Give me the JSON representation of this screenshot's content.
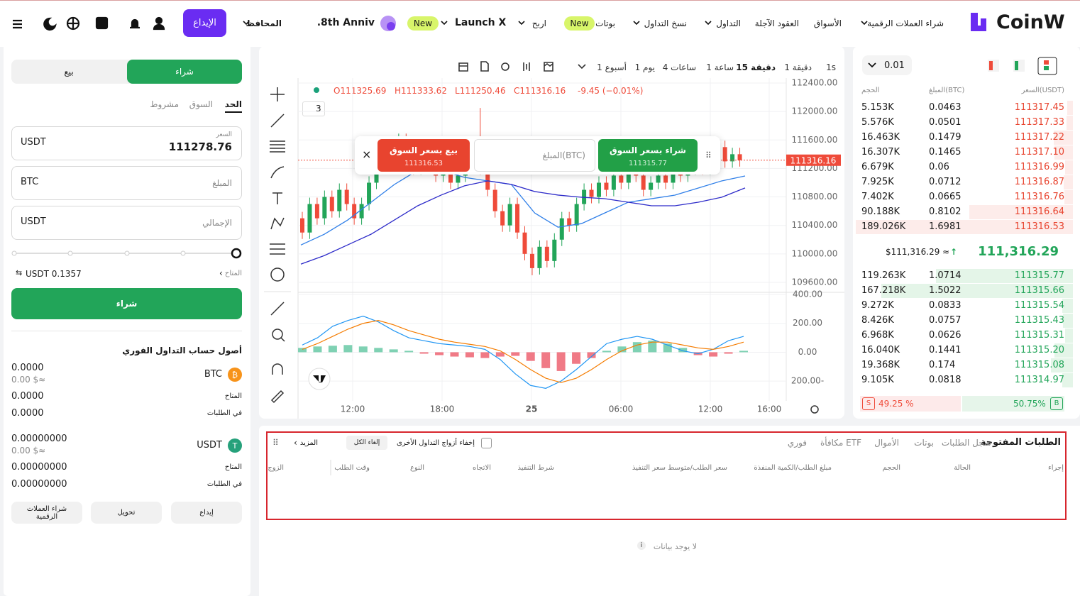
{
  "nav": {
    "logo": "CoinW",
    "buy_crypto": "شراء العملات الرقمية",
    "markets": "الأسواق",
    "futures": "العقود الآجلة",
    "trade": "التداول",
    "copy_trading": "نسخ التداول",
    "bots": "بوتات",
    "bots_badge": "New",
    "earn": "اربح",
    "launch_x": "Launch X",
    "launch_badge": "New",
    "anniversary": "8th Anniv.",
    "wallets": "المحافظ",
    "deposit": "الإيداع"
  },
  "trade_form": {
    "tabs": {
      "buy": "شراء",
      "sell": "بيع"
    },
    "order_types": {
      "limit": "الحد",
      "market": "السوق",
      "conditional": "مشروط"
    },
    "price": {
      "label": "السعر",
      "value": "111278.76",
      "unit": "USDT"
    },
    "amount": {
      "label": "المبلغ",
      "unit": "BTC"
    },
    "total": {
      "label": "الإجمالي",
      "unit": "USDT"
    },
    "available": {
      "label": "المتاح",
      "value": "USDT 0.1357"
    },
    "submit": "شراء"
  },
  "assets": {
    "title": "أصول حساب التداول الفوري",
    "coins": [
      {
        "name": "BTC",
        "balance": "0.0000",
        "usd": "0.00 $≈",
        "available_label": "المتاح",
        "available": "0.0000",
        "in_orders_label": "في الطلبات",
        "in_orders": "0.0000"
      },
      {
        "name": "USDT",
        "balance": "0.00000000",
        "usd": "0.00 $≈",
        "available_label": "المتاح",
        "available": "0.00000000",
        "in_orders_label": "في الطلبات",
        "in_orders": "0.00000000"
      }
    ],
    "buttons": {
      "deposit": "إيداع",
      "transfer": "تحويل",
      "buy": "شراء العملات الرقمية"
    }
  },
  "price_chart": {
    "intervals": [
      "1s",
      "1 دقيقة",
      "15 دقيقة",
      "1 ساعة",
      "4 ساعات",
      "1 يوم",
      "1 أسبوع"
    ],
    "ohlc": {
      "open": "O111325.69",
      "high": "H111333.62",
      "low": "L111250.46",
      "close": "C111316.16",
      "change": "-9.45 (−0.01%)"
    },
    "indicator_count": 3,
    "quick_trade": {
      "buy_label": "شراء بسعر السوق",
      "buy_price": "111315.77",
      "sell_label": "بيع بسعر السوق",
      "sell_price": "111316.53",
      "amount_placeholder": "المبلغ(BTC)"
    },
    "ylim": [
      109480,
      112470
    ],
    "yticks": [
      {
        "value": 112400,
        "label": "112400.00"
      },
      {
        "value": 112000,
        "label": "112000.00"
      },
      {
        "value": 111600,
        "label": "111600.00"
      },
      {
        "value": 111200,
        "label": "111200.00"
      },
      {
        "value": 110800,
        "label": "110800.00"
      },
      {
        "value": 110400,
        "label": "110400.00"
      },
      {
        "value": 110000,
        "label": "110000.00"
      },
      {
        "value": 109600,
        "label": "109600.00"
      }
    ],
    "last_price": 111316.16,
    "x_labels": [
      "12:00",
      "18:00",
      "25",
      "06:00",
      "12:00",
      "16:00"
    ],
    "up_color": "#22a559",
    "down_color": "#ef4b3a",
    "candles": {
      "open": [
        110500,
        110300,
        110700,
        110500,
        110800,
        110600,
        110900,
        110700,
        110500,
        110700,
        111000,
        111300,
        111500,
        111400,
        111600,
        111300,
        111200,
        111400,
        111300,
        111100,
        111200,
        111000,
        111100,
        111300,
        111500,
        111200,
        110900,
        110600,
        110400,
        110700,
        110300,
        110000,
        109800,
        110100,
        109900,
        110200,
        110500,
        110400,
        110700,
        110900,
        110800,
        111000,
        110900,
        111100,
        111000,
        111200,
        111100,
        110900,
        111000,
        111100,
        111000,
        111200,
        111100,
        111200,
        111300,
        111200,
        111400,
        111500,
        111300,
        111400
      ],
      "high": [
        110590,
        110790,
        110790,
        110890,
        110890,
        110990,
        110990,
        110790,
        110790,
        111090,
        111390,
        111590,
        111590,
        111690,
        111690,
        111390,
        111490,
        111490,
        111390,
        111290,
        111290,
        111190,
        111390,
        111590,
        112050,
        111290,
        110990,
        110690,
        110790,
        110790,
        110390,
        110090,
        110190,
        110190,
        110290,
        110590,
        110590,
        110790,
        110990,
        110990,
        111090,
        111090,
        111190,
        111190,
        111290,
        111290,
        111190,
        111090,
        111190,
        111190,
        111290,
        111290,
        111290,
        111390,
        111390,
        111490,
        111590,
        111590,
        111490,
        111490
      ],
      "low": [
        110210,
        110210,
        110410,
        110410,
        110510,
        110510,
        110610,
        110410,
        110410,
        110610,
        110910,
        111210,
        111310,
        111310,
        111210,
        111110,
        111110,
        111210,
        111010,
        111010,
        110910,
        110910,
        111010,
        111210,
        111110,
        110810,
        110510,
        110310,
        110310,
        110210,
        109910,
        109700,
        109710,
        109810,
        109810,
        110110,
        110310,
        110310,
        110610,
        110710,
        110710,
        110810,
        110810,
        110910,
        110910,
        111010,
        110810,
        110810,
        110910,
        110910,
        110910,
        111010,
        111010,
        111110,
        111110,
        111110,
        111310,
        111210,
        111210,
        111226
      ],
      "close": [
        110300,
        110700,
        110500,
        110800,
        110600,
        110900,
        110700,
        110500,
        110700,
        111000,
        111300,
        111500,
        111400,
        111600,
        111300,
        111200,
        111400,
        111300,
        111100,
        111200,
        111000,
        111100,
        111300,
        111500,
        111200,
        110900,
        110600,
        110400,
        110700,
        110300,
        110000,
        109800,
        110100,
        109900,
        110200,
        110500,
        110400,
        110700,
        110900,
        110800,
        111000,
        110900,
        111100,
        111000,
        111200,
        111100,
        110900,
        111000,
        111100,
        111000,
        111200,
        111100,
        111200,
        111300,
        111200,
        111400,
        111500,
        111300,
        111400,
        111316.16
      ]
    },
    "moving_averages": [
      {
        "color": "#2f7fe8",
        "values": [
          110125,
          110275,
          110475,
          110725,
          110975,
          111175,
          111175,
          111075,
          111025,
          110975,
          110575,
          110375,
          110425,
          110575,
          110725,
          110775,
          110825,
          110925,
          111025,
          111095
        ]
      },
      {
        "color": "#2d2bc9",
        "values": [
          109856,
          109976,
          110126,
          110276,
          110476,
          110676,
          110826,
          110956,
          111026,
          110976,
          110876,
          110826,
          110796,
          110776,
          110726,
          110676,
          110676,
          110726,
          110796,
          110926
        ]
      }
    ],
    "macd": {
      "ylim": [
        -327,
        410
      ],
      "yticks": [
        {
          "value": 400,
          "label": "400.00"
        },
        {
          "value": 200,
          "label": "200.00"
        },
        {
          "value": 0,
          "label": "0.00"
        },
        {
          "value": -200,
          "label": "200.00-"
        }
      ],
      "histogram": [
        30,
        40,
        45,
        50,
        40,
        30,
        20,
        10,
        -10,
        -20,
        -30,
        -35,
        -40,
        -30,
        -25,
        -60,
        -110,
        -130,
        -80,
        -40,
        10,
        40,
        70,
        80,
        60,
        30,
        -20,
        -30,
        -10,
        10
      ],
      "macd_line": {
        "color": "#2196f3",
        "values": [
          50,
          100,
          180,
          220,
          250,
          210,
          150,
          100,
          80,
          60,
          50,
          40,
          20,
          -50,
          -150,
          -230,
          -250,
          -200,
          -120,
          -30,
          60,
          90,
          110,
          90,
          50,
          10,
          -10,
          20,
          80,
          110
        ]
      },
      "signal_line": {
        "color": "#f57c00",
        "values": [
          20,
          60,
          110,
          160,
          200,
          220,
          190,
          150,
          120,
          90,
          70,
          55,
          40,
          10,
          -50,
          -120,
          -180,
          -210,
          -180,
          -120,
          -50,
          10,
          50,
          70,
          70,
          50,
          30,
          20,
          40,
          70
        ]
      }
    }
  },
  "order_book": {
    "precision": "0.01",
    "headers": {
      "price": "السعر(USDT)",
      "amount": "المبلغ(BTC)",
      "total": "الحجم"
    },
    "asks": [
      [
        "111317.45",
        "0.0463",
        "5.153K"
      ],
      [
        "111317.33",
        "0.0501",
        "5.576K"
      ],
      [
        "111317.22",
        "0.1479",
        "16.463K"
      ],
      [
        "111317.10",
        "0.1465",
        "16.307K"
      ],
      [
        "111316.99",
        "0.06",
        "6.679K"
      ],
      [
        "111316.87",
        "0.0712",
        "7.925K"
      ],
      [
        "111316.76",
        "0.0665",
        "7.402K"
      ],
      [
        "111316.64",
        "0.8102",
        "90.188K"
      ],
      [
        "111316.53",
        "1.6981",
        "189.026K"
      ]
    ],
    "mid_price": "111,316.29",
    "mid_usd": "$111,316.29 ≈",
    "bids": [
      [
        "111315.77",
        "1.0714",
        "119.263K"
      ],
      [
        "111315.66",
        "1.5022",
        "167.218K"
      ],
      [
        "111315.54",
        "0.0833",
        "9.272K"
      ],
      [
        "111315.43",
        "0.0757",
        "8.426K"
      ],
      [
        "111315.31",
        "0.0626",
        "6.968K"
      ],
      [
        "111315.20",
        "0.1441",
        "16.040K"
      ],
      [
        "111315.08",
        "0.174",
        "19.368K"
      ],
      [
        "111314.97",
        "0.0818",
        "9.105K"
      ]
    ],
    "sell_tag": "S",
    "sell_ratio": "49.25 %",
    "buy_ratio": "50.75%",
    "buy_tag": "B"
  },
  "orders_panel": {
    "tabs": [
      "الطلبات المفتوحة",
      "سجل الطلبات",
      "بوتات",
      "الأموال",
      "مكافأة ETF",
      "فوري"
    ],
    "hide_other_pairs": "إخفاء أزواج التداول الأخرى",
    "cancel_all": "إلغاء الكل",
    "more": "المزيد",
    "columns": [
      "إجراء",
      "الحالة",
      "الحجم",
      "مبلغ الطلب/الكمية المنفذة",
      "سعر الطلب/متوسط سعر التنفيذ",
      "شرط التنفيذ",
      "الاتجاه",
      "النوع",
      "وقت الطلب",
      "الزوج"
    ],
    "empty": "لا يوجد بيانات"
  }
}
